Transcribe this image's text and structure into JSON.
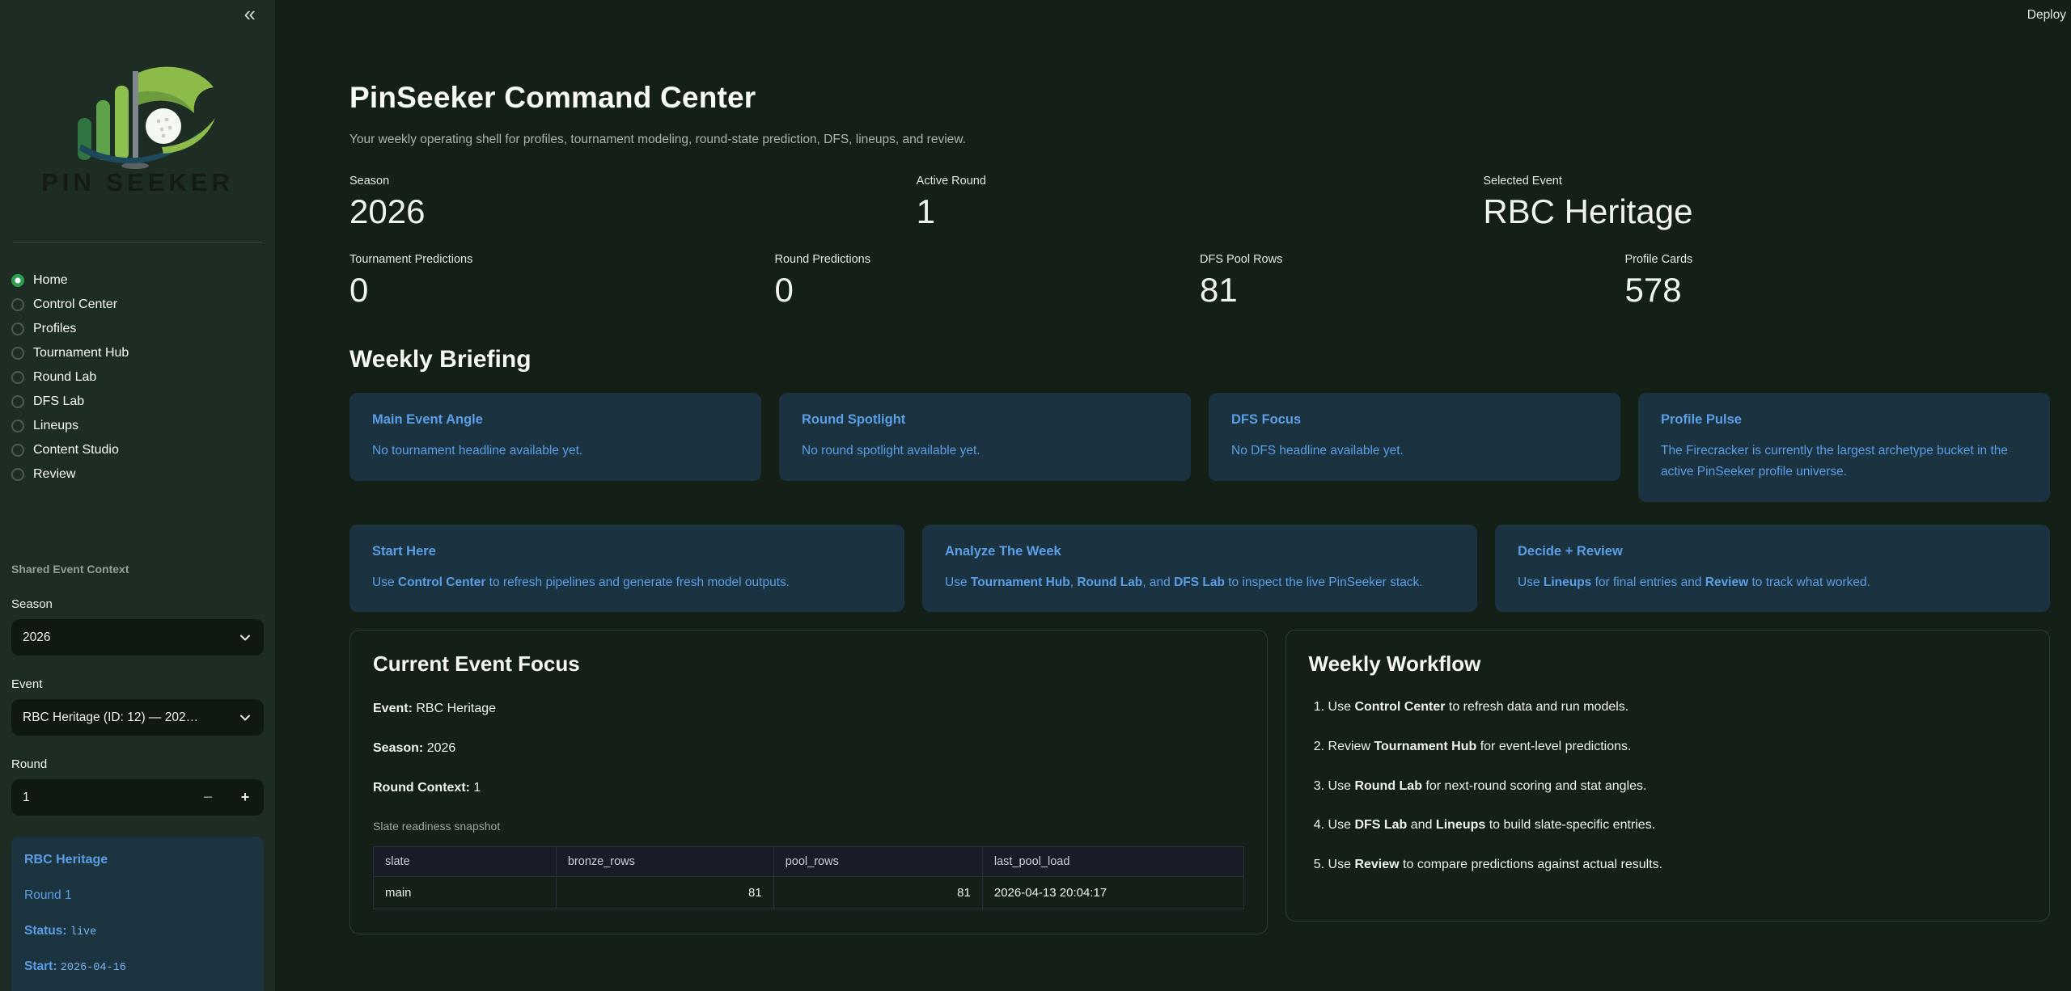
{
  "app": {
    "deploy_label": "Deploy"
  },
  "colors": {
    "sidebar_bg": "#1e2d23",
    "main_bg": "#141f17",
    "accent_green": "#2e9e53",
    "info_card_bg": "#1b3340",
    "info_text_blue": "#5b9ee5",
    "code_blue": "#79b6f4"
  },
  "sidebar": {
    "collapse_icon": "«",
    "logo_text": "PIN SEEKER",
    "nav": [
      {
        "label": "Home",
        "selected": true
      },
      {
        "label": "Control Center",
        "selected": false
      },
      {
        "label": "Profiles",
        "selected": false
      },
      {
        "label": "Tournament Hub",
        "selected": false
      },
      {
        "label": "Round Lab",
        "selected": false
      },
      {
        "label": "DFS Lab",
        "selected": false
      },
      {
        "label": "Lineups",
        "selected": false
      },
      {
        "label": "Content Studio",
        "selected": false
      },
      {
        "label": "Review",
        "selected": false
      }
    ],
    "context": {
      "heading": "Shared Event Context",
      "season": {
        "label": "Season",
        "value": "2026"
      },
      "event": {
        "label": "Event",
        "value": "RBC Heritage (ID: 12) — 202…"
      },
      "round": {
        "label": "Round",
        "value": "1",
        "minus": "−",
        "plus": "+"
      },
      "event_card": {
        "title": "RBC Heritage",
        "round_line": "Round 1",
        "status_label": "Status:",
        "status_value": "live",
        "start_label": "Start:",
        "start_value": "2026-04-16"
      }
    }
  },
  "main": {
    "title": "PinSeeker Command Center",
    "subtitle": "Your weekly operating shell for profiles, tournament modeling, round-state prediction, DFS, lineups, and review.",
    "metrics_row1": [
      {
        "label": "Season",
        "value": "2026"
      },
      {
        "label": "Active Round",
        "value": "1"
      },
      {
        "label": "Selected Event",
        "value": "RBC Heritage"
      }
    ],
    "metrics_row2": [
      {
        "label": "Tournament Predictions",
        "value": "0"
      },
      {
        "label": "Round Predictions",
        "value": "0"
      },
      {
        "label": "DFS Pool Rows",
        "value": "81"
      },
      {
        "label": "Profile Cards",
        "value": "578"
      }
    ],
    "briefing": {
      "heading": "Weekly Briefing",
      "cards": [
        {
          "title": "Main Event Angle",
          "body": "No tournament headline available yet."
        },
        {
          "title": "Round Spotlight",
          "body": "No round spotlight available yet."
        },
        {
          "title": "DFS Focus",
          "body": "No DFS headline available yet."
        },
        {
          "title": "Profile Pulse",
          "body": "The Firecracker is currently the largest archetype bucket in the active PinSeeker profile universe."
        }
      ]
    },
    "guide_cards": [
      {
        "title": "Start Here",
        "segments": [
          {
            "t": "Use "
          },
          {
            "t": "Control Center",
            "b": true
          },
          {
            "t": " to refresh pipelines and generate fresh model outputs."
          }
        ]
      },
      {
        "title": "Analyze The Week",
        "segments": [
          {
            "t": "Use "
          },
          {
            "t": "Tournament Hub",
            "b": true
          },
          {
            "t": ", "
          },
          {
            "t": "Round Lab",
            "b": true
          },
          {
            "t": ", and "
          },
          {
            "t": "DFS Lab",
            "b": true
          },
          {
            "t": " to inspect the live PinSeeker stack."
          }
        ]
      },
      {
        "title": "Decide + Review",
        "segments": [
          {
            "t": "Use "
          },
          {
            "t": "Lineups",
            "b": true
          },
          {
            "t": " for final entries and "
          },
          {
            "t": "Review",
            "b": true
          },
          {
            "t": " to track what worked."
          }
        ]
      }
    ],
    "focus": {
      "heading": "Current Event Focus",
      "lines": [
        {
          "label": "Event:",
          "value": " RBC Heritage"
        },
        {
          "label": "Season:",
          "value": " 2026"
        },
        {
          "label": "Round Context:",
          "value": " 1"
        }
      ],
      "caption": "Slate readiness snapshot",
      "table": {
        "headers": [
          "slate",
          "bronze_rows",
          "pool_rows",
          "last_pool_load"
        ],
        "rows": [
          [
            "main",
            "81",
            "81",
            "2026-04-13 20:04:17"
          ]
        ]
      }
    },
    "workflow": {
      "heading": "Weekly Workflow",
      "steps": [
        {
          "segments": [
            {
              "t": "Use "
            },
            {
              "t": "Control Center",
              "b": true
            },
            {
              "t": " to refresh data and run models."
            }
          ]
        },
        {
          "segments": [
            {
              "t": "Review "
            },
            {
              "t": "Tournament Hub",
              "b": true
            },
            {
              "t": " for event-level predictions."
            }
          ]
        },
        {
          "segments": [
            {
              "t": "Use "
            },
            {
              "t": "Round Lab",
              "b": true
            },
            {
              "t": " for next-round scoring and stat angles."
            }
          ]
        },
        {
          "segments": [
            {
              "t": "Use "
            },
            {
              "t": "DFS Lab",
              "b": true
            },
            {
              "t": " and "
            },
            {
              "t": "Lineups",
              "b": true
            },
            {
              "t": " to build slate-specific entries."
            }
          ]
        },
        {
          "segments": [
            {
              "t": "Use "
            },
            {
              "t": "Review",
              "b": true
            },
            {
              "t": " to compare predictions against actual results."
            }
          ]
        }
      ]
    }
  }
}
